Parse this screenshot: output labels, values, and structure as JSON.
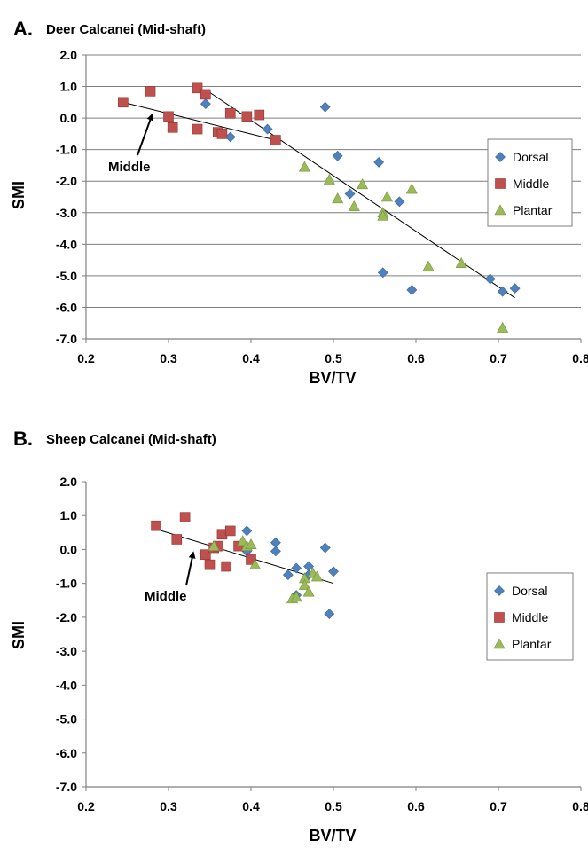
{
  "chart_data": [
    {
      "type": "scatter",
      "panel_letter": "A.",
      "title": "Deer Calcanei (Mid-shaft)",
      "xlabel": "BV/TV",
      "ylabel": "SMI",
      "xlim": [
        0.2,
        0.8
      ],
      "ylim": [
        -7.0,
        2.0
      ],
      "xticks": [
        "0.2",
        "0.3",
        "0.4",
        "0.5",
        "0.6",
        "0.7",
        "0.8"
      ],
      "yticks": [
        "2.0",
        "1.0",
        "0.0",
        "-1.0",
        "-2.0",
        "-3.0",
        "-4.0",
        "-5.0",
        "-6.0",
        "-7.0"
      ],
      "grid": "horizontal",
      "legend_position": "right",
      "annotation": {
        "text": "Middle",
        "arrow_to": [
          0.28,
          0.1
        ]
      },
      "series": [
        {
          "name": "Dorsal",
          "color": "#4f81bd",
          "marker": "diamond",
          "points": [
            [
              0.345,
              0.45
            ],
            [
              0.375,
              -0.6
            ],
            [
              0.42,
              -0.35
            ],
            [
              0.49,
              0.35
            ],
            [
              0.505,
              -1.2
            ],
            [
              0.52,
              -2.4
            ],
            [
              0.555,
              -1.4
            ],
            [
              0.56,
              -4.9
            ],
            [
              0.58,
              -2.65
            ],
            [
              0.595,
              -5.45
            ],
            [
              0.69,
              -5.1
            ],
            [
              0.705,
              -5.5
            ],
            [
              0.72,
              -5.4
            ]
          ]
        },
        {
          "name": "Middle",
          "color": "#c0504d",
          "marker": "square",
          "points": [
            [
              0.245,
              0.5
            ],
            [
              0.278,
              0.85
            ],
            [
              0.3,
              0.05
            ],
            [
              0.305,
              -0.3
            ],
            [
              0.335,
              0.95
            ],
            [
              0.335,
              -0.35
            ],
            [
              0.345,
              0.75
            ],
            [
              0.36,
              -0.45
            ],
            [
              0.365,
              -0.5
            ],
            [
              0.375,
              0.15
            ],
            [
              0.395,
              0.05
            ],
            [
              0.41,
              0.1
            ],
            [
              0.43,
              -0.7
            ]
          ]
        },
        {
          "name": "Plantar",
          "color": "#9bbb59",
          "marker": "triangle",
          "points": [
            [
              0.465,
              -1.55
            ],
            [
              0.495,
              -1.95
            ],
            [
              0.505,
              -2.55
            ],
            [
              0.525,
              -2.8
            ],
            [
              0.535,
              -2.1
            ],
            [
              0.56,
              -3.0
            ],
            [
              0.56,
              -3.1
            ],
            [
              0.565,
              -2.5
            ],
            [
              0.595,
              -2.25
            ],
            [
              0.615,
              -4.7
            ],
            [
              0.655,
              -4.6
            ],
            [
              0.705,
              -6.65
            ]
          ]
        }
      ],
      "trendlines": [
        {
          "from": [
            0.245,
            0.5
          ],
          "to": [
            0.43,
            -0.7
          ]
        },
        {
          "from": [
            0.345,
            0.9
          ],
          "to": [
            0.72,
            -5.7
          ]
        }
      ]
    },
    {
      "type": "scatter",
      "panel_letter": "B.",
      "title": "Sheep Calcanei (Mid-shaft)",
      "xlabel": "BV/TV",
      "ylabel": "SMI",
      "xlim": [
        0.2,
        0.8
      ],
      "ylim": [
        -7.0,
        2.0
      ],
      "xticks": [
        "0.2",
        "0.3",
        "0.4",
        "0.5",
        "0.6",
        "0.7",
        "0.8"
      ],
      "yticks": [
        "2.0",
        "1.0",
        "0.0",
        "-1.0",
        "-2.0",
        "-3.0",
        "-4.0",
        "-5.0",
        "-6.0",
        "-7.0"
      ],
      "grid": "none",
      "legend_position": "right",
      "annotation": {
        "text": "Middle",
        "arrow_to": [
          0.33,
          -0.1
        ]
      },
      "series": [
        {
          "name": "Dorsal",
          "color": "#4f81bd",
          "marker": "diamond",
          "points": [
            [
              0.395,
              0.55
            ],
            [
              0.395,
              -0.05
            ],
            [
              0.43,
              0.2
            ],
            [
              0.43,
              -0.05
            ],
            [
              0.445,
              -0.75
            ],
            [
              0.455,
              -0.55
            ],
            [
              0.455,
              -1.35
            ],
            [
              0.47,
              -0.5
            ],
            [
              0.47,
              -0.75
            ],
            [
              0.49,
              0.05
            ],
            [
              0.495,
              -1.9
            ],
            [
              0.5,
              -0.65
            ]
          ]
        },
        {
          "name": "Middle",
          "color": "#c0504d",
          "marker": "square",
          "points": [
            [
              0.285,
              0.7
            ],
            [
              0.31,
              0.3
            ],
            [
              0.32,
              0.95
            ],
            [
              0.345,
              -0.15
            ],
            [
              0.35,
              -0.45
            ],
            [
              0.355,
              0.05
            ],
            [
              0.36,
              0.1
            ],
            [
              0.365,
              0.45
            ],
            [
              0.37,
              -0.5
            ],
            [
              0.375,
              0.55
            ],
            [
              0.385,
              0.1
            ],
            [
              0.4,
              -0.3
            ]
          ]
        },
        {
          "name": "Plantar",
          "color": "#9bbb59",
          "marker": "triangle",
          "points": [
            [
              0.355,
              0.1
            ],
            [
              0.39,
              0.25
            ],
            [
              0.395,
              0.1
            ],
            [
              0.4,
              0.15
            ],
            [
              0.405,
              -0.45
            ],
            [
              0.45,
              -1.45
            ],
            [
              0.455,
              -1.4
            ],
            [
              0.465,
              -0.85
            ],
            [
              0.465,
              -1.05
            ],
            [
              0.47,
              -1.25
            ],
            [
              0.475,
              -0.7
            ],
            [
              0.48,
              -0.8
            ]
          ]
        }
      ],
      "trendlines": [
        {
          "from": [
            0.285,
            0.6
          ],
          "to": [
            0.5,
            -1.0
          ]
        }
      ]
    }
  ]
}
